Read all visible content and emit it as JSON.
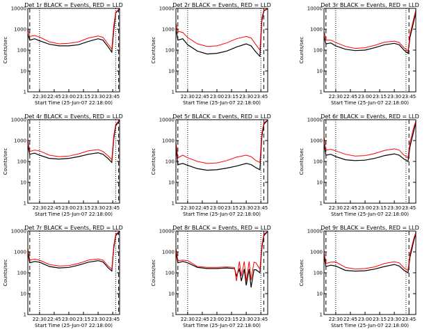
{
  "chart_data": [
    {
      "title": "Det 1r BLACK = Events, RED = LLD",
      "type": "line",
      "ylabel": "Counts/sec",
      "xlabel": "Start Time (25-Jun-07 22:18:00)",
      "x_ticks": [
        "22:30",
        "22:45",
        "23:00",
        "23:15",
        "23:30",
        "23:45"
      ],
      "y_ticks": [
        "1",
        "10",
        "100",
        "1000",
        "10000"
      ],
      "y_scale": "log",
      "ylim": [
        1,
        10000
      ],
      "x_range": [
        "22:18",
        "23:52"
      ],
      "series": [
        {
          "name": "BLACK",
          "color": "#000000",
          "x_min": [
            18,
            20,
            25,
            30,
            40,
            50,
            60,
            70,
            80,
            90,
            95,
            100,
            104,
            106,
            108,
            115,
            120
          ],
          "y": [
            600,
            300,
            350,
            280,
            190,
            160,
            160,
            180,
            260,
            350,
            300,
            150,
            80,
            900,
            6000,
            9500,
            9500
          ]
        },
        {
          "name": "RED",
          "color": "#ff0000",
          "x_min": [
            18,
            20,
            25,
            30,
            40,
            50,
            60,
            70,
            80,
            90,
            95,
            100,
            104,
            106,
            108,
            115,
            120
          ],
          "y": [
            1100,
            450,
            500,
            420,
            250,
            200,
            210,
            250,
            380,
            470,
            410,
            200,
            110,
            1500,
            6500,
            9700,
            9700
          ]
        }
      ],
      "dashed_min": [
        20,
        111,
        118
      ],
      "dotted_min": [
        30,
        108
      ]
    },
    {
      "title": "Det 2r BLACK = Events, RED = LLD",
      "type": "line",
      "ylabel": "Counts/sec",
      "xlabel": "Start Time (25-Jun-07 22:18:00)",
      "x_ticks": [
        "22:30",
        "22:45",
        "23:00",
        "23:15",
        "23:30",
        "23:45"
      ],
      "y_ticks": [
        "1",
        "10",
        "100",
        "1000",
        "10000"
      ],
      "y_scale": "log",
      "ylim": [
        1,
        10000
      ],
      "x_range": [
        "22:18",
        "23:52"
      ],
      "series": [
        {
          "name": "BLACK",
          "color": "#000000",
          "x_min": [
            18,
            20,
            25,
            30,
            40,
            50,
            60,
            70,
            80,
            90,
            95,
            100,
            104,
            106,
            108,
            115,
            120
          ],
          "y": [
            1200,
            300,
            350,
            180,
            90,
            65,
            70,
            90,
            140,
            200,
            160,
            80,
            50,
            2500,
            7500,
            9500,
            9500
          ]
        },
        {
          "name": "RED",
          "color": "#ff0000",
          "x_min": [
            18,
            20,
            25,
            30,
            40,
            50,
            60,
            70,
            80,
            90,
            95,
            100,
            104,
            106,
            108,
            115,
            120
          ],
          "y": [
            2000,
            800,
            700,
            400,
            200,
            150,
            160,
            220,
            350,
            450,
            380,
            180,
            100,
            3500,
            8000,
            9700,
            9700
          ]
        }
      ],
      "dashed_min": [
        20,
        108
      ],
      "dotted_min": [
        30,
        105
      ]
    },
    {
      "title": "Det 3r BLACK = Events, RED = LLD",
      "type": "line",
      "ylabel": "Counts/sec",
      "xlabel": "Start Time (25-Jun-07 22:18:00)",
      "x_ticks": [
        "22:30",
        "22:45",
        "23:00",
        "23:15",
        "23:30",
        "23:45"
      ],
      "y_ticks": [
        "1",
        "10",
        "100",
        "1000",
        "10000"
      ],
      "y_scale": "log",
      "ylim": [
        1,
        10000
      ],
      "x_range": [
        "22:18",
        "23:52"
      ],
      "series": [
        {
          "name": "BLACK",
          "color": "#000000",
          "x_min": [
            18,
            20,
            25,
            30,
            40,
            50,
            60,
            70,
            80,
            90,
            95,
            100,
            104,
            106,
            110,
            115,
            120
          ],
          "y": [
            450,
            200,
            220,
            160,
            110,
            95,
            100,
            130,
            180,
            210,
            180,
            100,
            70,
            400,
            2500,
            6000,
            9000
          ]
        },
        {
          "name": "RED",
          "color": "#ff0000",
          "x_min": [
            18,
            20,
            25,
            30,
            40,
            50,
            60,
            70,
            80,
            90,
            95,
            100,
            104,
            106,
            110,
            115,
            120
          ],
          "y": [
            800,
            300,
            300,
            230,
            150,
            120,
            130,
            170,
            240,
            270,
            230,
            130,
            90,
            550,
            3500,
            8000,
            9500
          ]
        }
      ],
      "dashed_min": [
        20,
        105
      ],
      "dotted_min": [
        30,
        102
      ]
    },
    {
      "title": "Det 4r BLACK = Events, RED = LLD",
      "type": "line",
      "ylabel": "Counts/sec",
      "xlabel": "Start Time (25-Jun-07 22:18:00)",
      "x_ticks": [
        "22:30",
        "22:45",
        "23:00",
        "23:15",
        "23:30",
        "23:45"
      ],
      "y_ticks": [
        "1",
        "10",
        "100",
        "1000",
        "10000"
      ],
      "y_scale": "log",
      "ylim": [
        1,
        10000
      ],
      "x_range": [
        "22:18",
        "23:52"
      ],
      "series": [
        {
          "name": "BLACK",
          "color": "#000000",
          "x_min": [
            18,
            20,
            25,
            30,
            40,
            50,
            60,
            70,
            80,
            90,
            95,
            100,
            104,
            106,
            108,
            115,
            120
          ],
          "y": [
            600,
            220,
            250,
            200,
            140,
            130,
            140,
            170,
            220,
            260,
            220,
            140,
            90,
            1200,
            5000,
            9500,
            9500
          ]
        },
        {
          "name": "RED",
          "color": "#ff0000",
          "x_min": [
            18,
            20,
            25,
            30,
            40,
            50,
            60,
            70,
            80,
            90,
            95,
            100,
            104,
            106,
            108,
            115,
            120
          ],
          "y": [
            1200,
            300,
            350,
            320,
            200,
            170,
            180,
            230,
            320,
            370,
            300,
            190,
            120,
            1700,
            6000,
            9700,
            9700
          ]
        }
      ],
      "dashed_min": [
        20,
        111,
        118
      ],
      "dotted_min": [
        30,
        108
      ]
    },
    {
      "title": "Det 5r BLACK = Events, RED = LLD",
      "type": "line",
      "ylabel": "Counts/sec",
      "xlabel": "Start Time (25-Jun-07 22:18:00)",
      "x_ticks": [
        "22:30",
        "22:45",
        "23:00",
        "23:15",
        "23:30",
        "23:45"
      ],
      "y_ticks": [
        "1",
        "10",
        "100",
        "1000",
        "10000"
      ],
      "y_scale": "log",
      "ylim": [
        1,
        10000
      ],
      "x_range": [
        "22:18",
        "23:52"
      ],
      "series": [
        {
          "name": "BLACK",
          "color": "#000000",
          "x_min": [
            18,
            20,
            25,
            30,
            40,
            50,
            60,
            70,
            80,
            90,
            95,
            100,
            104,
            106,
            108,
            115,
            120
          ],
          "y": [
            500,
            70,
            80,
            65,
            45,
            38,
            40,
            48,
            60,
            80,
            70,
            50,
            40,
            1500,
            6000,
            9500,
            9500
          ]
        },
        {
          "name": "RED",
          "color": "#ff0000",
          "x_min": [
            18,
            20,
            25,
            30,
            40,
            50,
            60,
            70,
            80,
            90,
            95,
            100,
            104,
            106,
            108,
            115,
            120
          ],
          "y": [
            900,
            150,
            200,
            150,
            100,
            80,
            85,
            110,
            160,
            200,
            170,
            110,
            90,
            2200,
            7000,
            9700,
            9700
          ]
        }
      ],
      "dashed_min": [
        20,
        108
      ],
      "dotted_min": [
        30,
        105
      ]
    },
    {
      "title": "Det 6r BLACK = Events, RED = LLD",
      "type": "line",
      "ylabel": "Counts/sec",
      "xlabel": "Start Time (25-Jun-07 22:18:00)",
      "x_ticks": [
        "22:30",
        "22:45",
        "23:00",
        "23:15",
        "23:30",
        "23:45"
      ],
      "y_ticks": [
        "1",
        "10",
        "100",
        "1000",
        "10000"
      ],
      "y_scale": "log",
      "ylim": [
        1,
        10000
      ],
      "x_range": [
        "22:18",
        "23:52"
      ],
      "series": [
        {
          "name": "BLACK",
          "color": "#000000",
          "x_min": [
            18,
            20,
            25,
            30,
            40,
            50,
            60,
            70,
            80,
            90,
            95,
            100,
            104,
            106,
            110,
            115,
            120
          ],
          "y": [
            700,
            200,
            220,
            170,
            120,
            110,
            115,
            140,
            190,
            230,
            200,
            130,
            100,
            500,
            3000,
            7000,
            9000
          ]
        },
        {
          "name": "RED",
          "color": "#ff0000",
          "x_min": [
            18,
            20,
            25,
            30,
            40,
            50,
            60,
            70,
            80,
            90,
            95,
            100,
            104,
            106,
            110,
            115,
            120
          ],
          "y": [
            1500,
            350,
            380,
            320,
            220,
            180,
            190,
            240,
            340,
            400,
            350,
            200,
            150,
            800,
            4500,
            8500,
            9500
          ]
        }
      ],
      "dashed_min": [
        20,
        105
      ],
      "dotted_min": [
        30,
        102
      ]
    },
    {
      "title": "Det 7r BLACK = Events, RED = LLD",
      "type": "line",
      "ylabel": "Counts/sec",
      "xlabel": "Start Time (25-Jun-07 22:18:00)",
      "x_ticks": [
        "22:30",
        "22:45",
        "23:00",
        "23:15",
        "23:30",
        "23:45"
      ],
      "y_ticks": [
        "1",
        "10",
        "100",
        "1000",
        "10000"
      ],
      "y_scale": "log",
      "ylim": [
        1,
        10000
      ],
      "x_range": [
        "22:18",
        "23:52"
      ],
      "series": [
        {
          "name": "BLACK",
          "color": "#000000",
          "x_min": [
            18,
            20,
            25,
            30,
            40,
            50,
            60,
            70,
            80,
            90,
            95,
            100,
            104,
            106,
            108,
            115,
            120
          ],
          "y": [
            900,
            300,
            350,
            320,
            200,
            170,
            180,
            230,
            320,
            380,
            330,
            180,
            120,
            1500,
            6000,
            9500,
            9500
          ]
        },
        {
          "name": "RED",
          "color": "#ff0000",
          "x_min": [
            18,
            20,
            25,
            30,
            40,
            50,
            60,
            70,
            80,
            90,
            95,
            100,
            104,
            106,
            108,
            115,
            120
          ],
          "y": [
            1500,
            400,
            450,
            400,
            250,
            210,
            220,
            280,
            400,
            460,
            400,
            220,
            150,
            2000,
            7000,
            9700,
            9700
          ]
        }
      ],
      "dashed_min": [
        20,
        111,
        118
      ],
      "dotted_min": [
        30,
        108
      ]
    },
    {
      "title": "Det 8r BLACK = Events, RED = LLD",
      "type": "line",
      "ylabel": "Counts/sec",
      "xlabel": "Start Time (25-Jun-07 22:18:00)",
      "x_ticks": [
        "22:30",
        "22:45",
        "23:00",
        "23:15",
        "23:30",
        "23:45"
      ],
      "y_ticks": [
        "1",
        "10",
        "100",
        "1000",
        "10000"
      ],
      "y_scale": "log",
      "ylim": [
        1,
        10000
      ],
      "x_range": [
        "22:18",
        "23:52"
      ],
      "series": [
        {
          "name": "BLACK",
          "color": "#000000",
          "x_min": [
            18,
            20,
            25,
            30,
            40,
            50,
            60,
            70,
            78,
            80,
            83,
            85,
            88,
            90,
            93,
            95,
            98,
            100,
            104,
            106,
            108,
            115,
            120
          ],
          "y": [
            900,
            300,
            350,
            300,
            180,
            160,
            160,
            170,
            160,
            70,
            150,
            40,
            150,
            25,
            150,
            20,
            140,
            140,
            100,
            1500,
            6000,
            9500,
            9500
          ]
        },
        {
          "name": "RED",
          "color": "#ff0000",
          "x_min": [
            18,
            20,
            25,
            30,
            40,
            50,
            60,
            70,
            78,
            80,
            83,
            85,
            88,
            90,
            93,
            95,
            98,
            100,
            104,
            106,
            108,
            115,
            120
          ],
          "y": [
            1600,
            380,
            400,
            380,
            200,
            180,
            180,
            190,
            180,
            40,
            350,
            70,
            350,
            40,
            350,
            45,
            320,
            300,
            150,
            2000,
            7000,
            9700,
            9700
          ]
        }
      ],
      "dashed_min": [
        20,
        108
      ],
      "dotted_min": [
        30,
        105
      ]
    },
    {
      "title": "Det 9r BLACK = Events, RED = LLD",
      "type": "line",
      "ylabel": "Counts/sec",
      "xlabel": "Start Time (25-Jun-07 22:18:00)",
      "x_ticks": [
        "22:30",
        "22:45",
        "23:00",
        "23:15",
        "23:30",
        "23:45"
      ],
      "y_ticks": [
        "1",
        "10",
        "100",
        "1000",
        "10000"
      ],
      "y_scale": "log",
      "ylim": [
        1,
        10000
      ],
      "x_range": [
        "22:18",
        "23:52"
      ],
      "series": [
        {
          "name": "BLACK",
          "color": "#000000",
          "x_min": [
            18,
            20,
            25,
            30,
            40,
            50,
            60,
            70,
            80,
            90,
            95,
            100,
            104,
            106,
            110,
            115,
            120
          ],
          "y": [
            600,
            200,
            230,
            210,
            130,
            120,
            125,
            150,
            200,
            250,
            210,
            130,
            100,
            550,
            3500,
            7500,
            9000
          ]
        },
        {
          "name": "RED",
          "color": "#ff0000",
          "x_min": [
            18,
            20,
            25,
            30,
            40,
            50,
            60,
            70,
            80,
            90,
            95,
            100,
            104,
            106,
            110,
            115,
            120
          ],
          "y": [
            1100,
            280,
            320,
            330,
            180,
            150,
            160,
            190,
            280,
            340,
            300,
            170,
            130,
            800,
            4500,
            8500,
            9500
          ]
        }
      ],
      "dashed_min": [
        20,
        105
      ],
      "dotted_min": [
        30,
        102
      ]
    }
  ]
}
